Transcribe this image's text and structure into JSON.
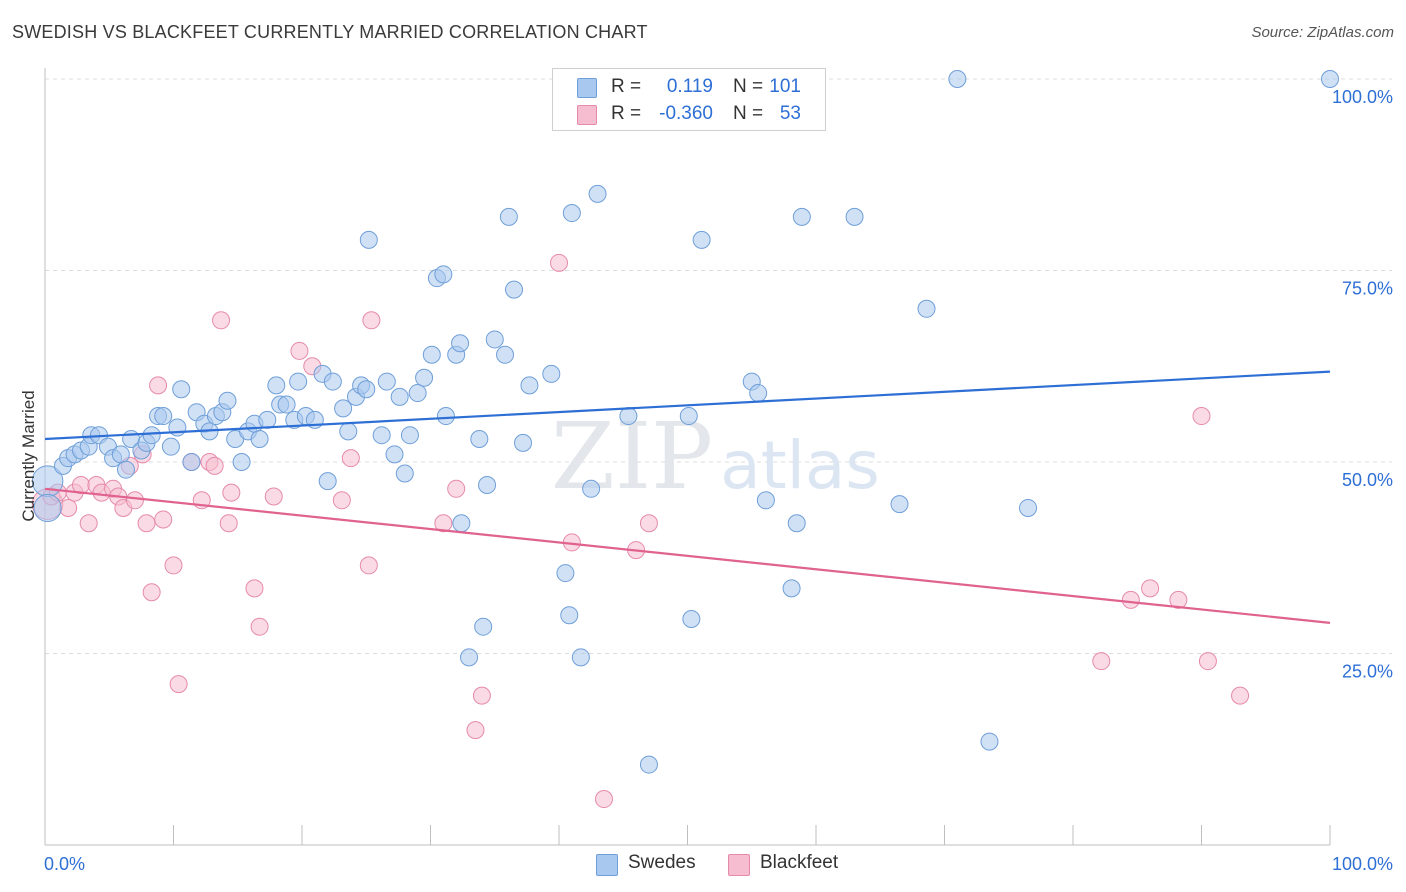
{
  "title": "SWEDISH VS BLACKFEET CURRENTLY MARRIED CORRELATION CHART",
  "source": "Source: ZipAtlas.com",
  "watermark": {
    "zip": "ZIP",
    "atlas": "atlas"
  },
  "legend": {
    "rows": [
      {
        "r_label": "R =",
        "r_value": "0.119",
        "n_label": "N =",
        "n_value": "101"
      },
      {
        "r_label": "R =",
        "r_value": "-0.360",
        "n_label": "N =",
        "n_value": "53"
      }
    ]
  },
  "bottom_legend": {
    "swedes": "Swedes",
    "blackfeet": "Blackfeet"
  },
  "colors": {
    "swedes_fill": "#a9c8ef",
    "swedes_stroke": "#6f9fd8",
    "swedes_line": "#2e6fd6",
    "blackfeet_fill": "#f6bdd0",
    "blackfeet_stroke": "#e68aab",
    "blackfeet_line": "#e0628f",
    "axis_text": "#2e6fd6"
  },
  "chart_data": {
    "type": "scatter",
    "title": "SWEDISH VS BLACKFEET CURRENTLY MARRIED CORRELATION CHART",
    "xlabel": "",
    "ylabel": "Currently Married",
    "xlim": [
      0,
      100
    ],
    "ylim": [
      0,
      100
    ],
    "x_tick_labels": [
      "0.0%",
      "100.0%"
    ],
    "y_ticks": [
      25,
      50,
      75,
      100
    ],
    "y_tick_labels": [
      "25.0%",
      "50.0%",
      "75.0%",
      "100.0%"
    ],
    "grid": true,
    "series": [
      {
        "name": "Swedes",
        "r": 0.119,
        "n": 101,
        "trend": {
          "x": [
            0,
            100
          ],
          "y": [
            53.0,
            61.8
          ]
        },
        "points": [
          {
            "x": 0.2,
            "y": 47.5,
            "s": 1.8
          },
          {
            "x": 0.2,
            "y": 44.0,
            "s": 1.6
          },
          {
            "x": 1.4,
            "y": 49.5
          },
          {
            "x": 1.8,
            "y": 50.5
          },
          {
            "x": 2.3,
            "y": 51.0
          },
          {
            "x": 2.8,
            "y": 51.5
          },
          {
            "x": 3.4,
            "y": 52.0
          },
          {
            "x": 3.6,
            "y": 53.5
          },
          {
            "x": 4.2,
            "y": 53.5
          },
          {
            "x": 4.9,
            "y": 52.0
          },
          {
            "x": 5.3,
            "y": 50.5
          },
          {
            "x": 5.9,
            "y": 51.0
          },
          {
            "x": 6.3,
            "y": 49.0
          },
          {
            "x": 6.7,
            "y": 53.0
          },
          {
            "x": 7.5,
            "y": 51.5
          },
          {
            "x": 7.9,
            "y": 52.5
          },
          {
            "x": 8.3,
            "y": 53.5
          },
          {
            "x": 8.8,
            "y": 56.0
          },
          {
            "x": 9.2,
            "y": 56.0
          },
          {
            "x": 9.8,
            "y": 52.0
          },
          {
            "x": 10.3,
            "y": 54.5
          },
          {
            "x": 10.6,
            "y": 59.5
          },
          {
            "x": 11.4,
            "y": 50.0
          },
          {
            "x": 11.8,
            "y": 56.5
          },
          {
            "x": 12.4,
            "y": 55.0
          },
          {
            "x": 12.8,
            "y": 54.0
          },
          {
            "x": 13.3,
            "y": 56.0
          },
          {
            "x": 13.8,
            "y": 56.5
          },
          {
            "x": 14.2,
            "y": 58.0
          },
          {
            "x": 14.8,
            "y": 53.0
          },
          {
            "x": 15.3,
            "y": 50.0
          },
          {
            "x": 15.8,
            "y": 54.0
          },
          {
            "x": 16.3,
            "y": 55.0
          },
          {
            "x": 16.7,
            "y": 53.0
          },
          {
            "x": 17.3,
            "y": 55.5
          },
          {
            "x": 18.0,
            "y": 60.0
          },
          {
            "x": 18.3,
            "y": 57.5
          },
          {
            "x": 18.8,
            "y": 57.5
          },
          {
            "x": 19.4,
            "y": 55.5
          },
          {
            "x": 19.7,
            "y": 60.5
          },
          {
            "x": 20.3,
            "y": 56.0
          },
          {
            "x": 21.0,
            "y": 55.5
          },
          {
            "x": 21.6,
            "y": 61.5
          },
          {
            "x": 22.0,
            "y": 47.5
          },
          {
            "x": 22.4,
            "y": 60.5
          },
          {
            "x": 23.2,
            "y": 57.0
          },
          {
            "x": 23.6,
            "y": 54.0
          },
          {
            "x": 24.2,
            "y": 58.5
          },
          {
            "x": 24.6,
            "y": 60.0
          },
          {
            "x": 25.0,
            "y": 59.5
          },
          {
            "x": 25.2,
            "y": 79.0
          },
          {
            "x": 26.2,
            "y": 53.5
          },
          {
            "x": 26.6,
            "y": 60.5
          },
          {
            "x": 27.2,
            "y": 51.0
          },
          {
            "x": 27.6,
            "y": 58.5
          },
          {
            "x": 28.0,
            "y": 48.5
          },
          {
            "x": 28.4,
            "y": 53.5
          },
          {
            "x": 29.0,
            "y": 59.0
          },
          {
            "x": 29.5,
            "y": 61.0
          },
          {
            "x": 30.1,
            "y": 64.0
          },
          {
            "x": 30.5,
            "y": 74.0
          },
          {
            "x": 31.0,
            "y": 74.5
          },
          {
            "x": 31.2,
            "y": 56.0
          },
          {
            "x": 32.0,
            "y": 64.0
          },
          {
            "x": 32.3,
            "y": 65.5
          },
          {
            "x": 32.4,
            "y": 42.0
          },
          {
            "x": 33.0,
            "y": 24.5
          },
          {
            "x": 33.8,
            "y": 53.0
          },
          {
            "x": 34.1,
            "y": 28.5
          },
          {
            "x": 34.4,
            "y": 47.0
          },
          {
            "x": 35.0,
            "y": 66.0
          },
          {
            "x": 35.8,
            "y": 64.0
          },
          {
            "x": 36.1,
            "y": 82.0
          },
          {
            "x": 36.5,
            "y": 72.5
          },
          {
            "x": 37.2,
            "y": 52.5
          },
          {
            "x": 37.7,
            "y": 60.0
          },
          {
            "x": 39.4,
            "y": 61.5
          },
          {
            "x": 40.5,
            "y": 35.5
          },
          {
            "x": 40.8,
            "y": 30.0
          },
          {
            "x": 41.0,
            "y": 82.5
          },
          {
            "x": 41.7,
            "y": 24.5
          },
          {
            "x": 42.5,
            "y": 46.5
          },
          {
            "x": 43.0,
            "y": 85.0
          },
          {
            "x": 45.4,
            "y": 56.0
          },
          {
            "x": 47.0,
            "y": 10.5
          },
          {
            "x": 50.1,
            "y": 56.0
          },
          {
            "x": 50.3,
            "y": 29.5
          },
          {
            "x": 51.1,
            "y": 79.0
          },
          {
            "x": 55.0,
            "y": 60.5
          },
          {
            "x": 55.5,
            "y": 59.0
          },
          {
            "x": 56.1,
            "y": 45.0
          },
          {
            "x": 58.1,
            "y": 33.5
          },
          {
            "x": 58.5,
            "y": 42.0
          },
          {
            "x": 58.9,
            "y": 82.0
          },
          {
            "x": 63.0,
            "y": 82.0
          },
          {
            "x": 66.5,
            "y": 44.5
          },
          {
            "x": 68.6,
            "y": 70.0
          },
          {
            "x": 71.0,
            "y": 100.0
          },
          {
            "x": 76.5,
            "y": 44.0
          },
          {
            "x": 73.5,
            "y": 13.5
          },
          {
            "x": 100.0,
            "y": 100.0
          }
        ]
      },
      {
        "name": "Blackfeet",
        "r": -0.36,
        "n": 53,
        "trend": {
          "x": [
            0,
            100
          ],
          "y": [
            46.5,
            29.0
          ]
        },
        "points": [
          {
            "x": 0.2,
            "y": 44.5,
            "s": 1.8
          },
          {
            "x": 0.5,
            "y": 45.5
          },
          {
            "x": 1.0,
            "y": 46.0
          },
          {
            "x": 1.8,
            "y": 44.0
          },
          {
            "x": 2.3,
            "y": 46.0
          },
          {
            "x": 2.8,
            "y": 47.0
          },
          {
            "x": 3.4,
            "y": 42.0
          },
          {
            "x": 4.0,
            "y": 47.0
          },
          {
            "x": 4.4,
            "y": 46.0
          },
          {
            "x": 5.3,
            "y": 46.5
          },
          {
            "x": 5.7,
            "y": 45.5
          },
          {
            "x": 6.1,
            "y": 44.0
          },
          {
            "x": 6.6,
            "y": 49.5
          },
          {
            "x": 7.0,
            "y": 45.0
          },
          {
            "x": 7.6,
            "y": 51.0
          },
          {
            "x": 7.9,
            "y": 42.0
          },
          {
            "x": 8.3,
            "y": 33.0
          },
          {
            "x": 8.8,
            "y": 60.0
          },
          {
            "x": 9.2,
            "y": 42.5
          },
          {
            "x": 10.0,
            "y": 36.5
          },
          {
            "x": 10.4,
            "y": 21.0
          },
          {
            "x": 11.4,
            "y": 50.0
          },
          {
            "x": 12.2,
            "y": 45.0
          },
          {
            "x": 12.8,
            "y": 50.0
          },
          {
            "x": 13.2,
            "y": 49.5
          },
          {
            "x": 13.7,
            "y": 68.5
          },
          {
            "x": 14.3,
            "y": 42.0
          },
          {
            "x": 14.5,
            "y": 46.0
          },
          {
            "x": 16.3,
            "y": 33.5
          },
          {
            "x": 16.7,
            "y": 28.5
          },
          {
            "x": 17.8,
            "y": 45.5
          },
          {
            "x": 19.8,
            "y": 64.5
          },
          {
            "x": 20.8,
            "y": 62.5
          },
          {
            "x": 23.1,
            "y": 45.0
          },
          {
            "x": 23.8,
            "y": 50.5
          },
          {
            "x": 25.2,
            "y": 36.5
          },
          {
            "x": 25.4,
            "y": 68.5
          },
          {
            "x": 31.0,
            "y": 42.0
          },
          {
            "x": 32.0,
            "y": 46.5
          },
          {
            "x": 34.0,
            "y": 19.5
          },
          {
            "x": 33.5,
            "y": 15.0
          },
          {
            "x": 40.0,
            "y": 76.0
          },
          {
            "x": 41.0,
            "y": 39.5
          },
          {
            "x": 43.5,
            "y": 6.0
          },
          {
            "x": 46.0,
            "y": 38.5
          },
          {
            "x": 47.0,
            "y": 42.0
          },
          {
            "x": 82.2,
            "y": 24.0
          },
          {
            "x": 84.5,
            "y": 32.0
          },
          {
            "x": 86.0,
            "y": 33.5
          },
          {
            "x": 88.2,
            "y": 32.0
          },
          {
            "x": 90.0,
            "y": 56.0
          },
          {
            "x": 90.5,
            "y": 24.0
          },
          {
            "x": 93.0,
            "y": 19.5
          }
        ]
      }
    ]
  }
}
